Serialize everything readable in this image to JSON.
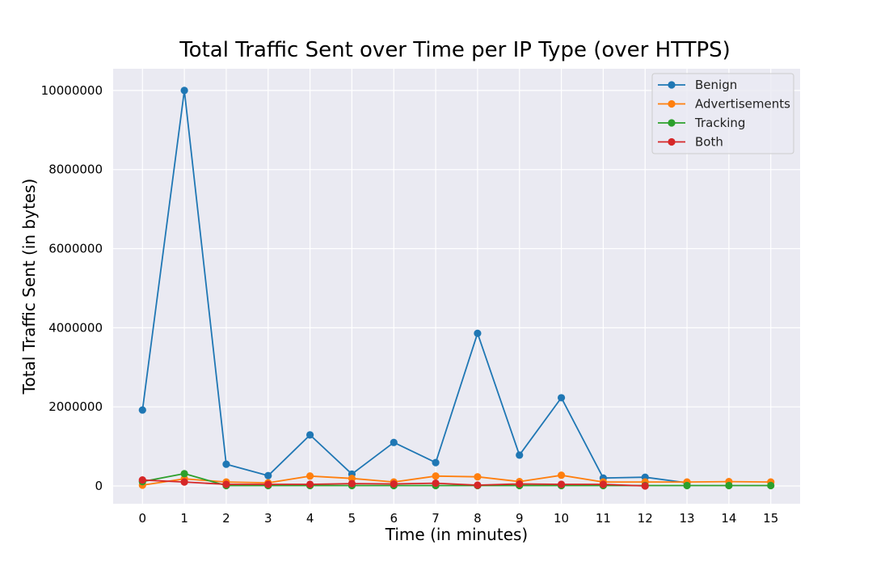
{
  "chart_data": {
    "type": "line",
    "title": "Total Traffic Sent over Time per IP Type (over HTTPS)",
    "xlabel": "Time (in minutes)",
    "ylabel": "Total Traffic Sent (in bytes)",
    "x": [
      0,
      1,
      2,
      3,
      4,
      5,
      6,
      7,
      8,
      9,
      10,
      11,
      12,
      13,
      14,
      15
    ],
    "x_ticks": [
      "0",
      "1",
      "2",
      "3",
      "4",
      "5",
      "6",
      "7",
      "8",
      "9",
      "10",
      "11",
      "12",
      "13",
      "14",
      "15"
    ],
    "y_ticks": [
      0,
      2000000,
      4000000,
      6000000,
      8000000,
      10000000
    ],
    "y_tick_labels": [
      "0",
      "2000000",
      "4000000",
      "6000000",
      "8000000",
      "10000000"
    ],
    "xlim": [
      -0.7,
      15.7
    ],
    "ylim": [
      -450000,
      10550000
    ],
    "grid": true,
    "legend_position": "top-right",
    "series": [
      {
        "name": "Benign",
        "color": "#1f77b4",
        "x": [
          0,
          1,
          2,
          3,
          4,
          5,
          6,
          7,
          8,
          9,
          10,
          11,
          12,
          13
        ],
        "values": [
          1920000,
          10000000,
          550000,
          260000,
          1290000,
          300000,
          1100000,
          590000,
          3860000,
          780000,
          2230000,
          200000,
          220000,
          80000
        ]
      },
      {
        "name": "Advertisements",
        "color": "#ff7f0e",
        "x": [
          0,
          1,
          2,
          3,
          4,
          5,
          6,
          7,
          8,
          9,
          10,
          11,
          12,
          13,
          14,
          15
        ],
        "values": [
          20000,
          180000,
          100000,
          80000,
          250000,
          190000,
          100000,
          250000,
          230000,
          110000,
          270000,
          100000,
          100000,
          100000,
          110000,
          100000
        ]
      },
      {
        "name": "Tracking",
        "color": "#2ca02c",
        "x": [
          0,
          1,
          2,
          3,
          4,
          5,
          6,
          7,
          8,
          9,
          10,
          11,
          12,
          13,
          14,
          15
        ],
        "values": [
          110000,
          310000,
          10000,
          10000,
          10000,
          10000,
          10000,
          10000,
          10000,
          10000,
          10000,
          10000,
          10000,
          10000,
          10000,
          10000
        ]
      },
      {
        "name": "Both",
        "color": "#d62728",
        "x": [
          0,
          1,
          2,
          3,
          4,
          5,
          6,
          7,
          8,
          9,
          10,
          11,
          12
        ],
        "values": [
          150000,
          100000,
          40000,
          40000,
          40000,
          60000,
          50000,
          70000,
          20000,
          50000,
          40000,
          40000,
          0
        ]
      }
    ]
  }
}
